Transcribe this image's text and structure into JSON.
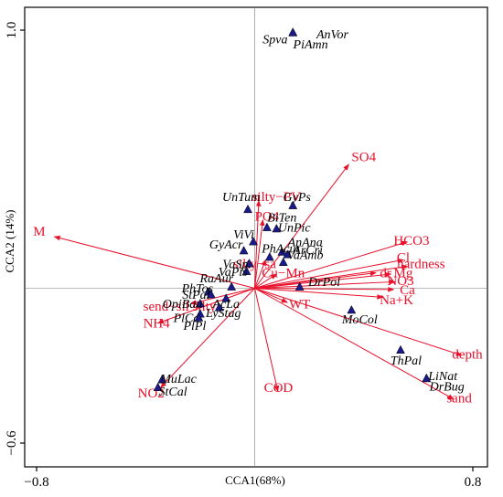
{
  "chart_data": {
    "type": "scatter",
    "title": "",
    "xlabel": "CCA1(68%)",
    "ylabel": "CCA2 (14%)",
    "xlim": [
      -0.8,
      0.8
    ],
    "ylim": [
      -0.6,
      1.0
    ],
    "x_ticks": [
      {
        "v": -0.8,
        "label": "−0.8"
      },
      {
        "v": 0.8,
        "label": "0.8"
      }
    ],
    "y_ticks": [
      {
        "v": 1.0,
        "label": "1.0"
      },
      {
        "v": -0.6,
        "label": "−0.6"
      }
    ],
    "colors": {
      "vector": "#e8102a",
      "point": "#1a1a8c",
      "axis": "#000000"
    },
    "vectors": [
      {
        "name": "M",
        "x": -0.735,
        "y": 0.2,
        "lx": -0.79,
        "ly": 0.215
      },
      {
        "name": "SO4",
        "x": 0.345,
        "y": 0.48,
        "lx": 0.4,
        "ly": 0.505
      },
      {
        "name": "HCO3",
        "x": 0.56,
        "y": 0.18,
        "lx": 0.575,
        "ly": 0.18
      },
      {
        "name": "Cl",
        "x": 0.545,
        "y": 0.11,
        "lx": 0.545,
        "ly": 0.115
      },
      {
        "name": "hardness",
        "x": 0.56,
        "y": 0.085,
        "lx": 0.61,
        "ly": 0.09
      },
      {
        "name": "Mg",
        "x": 0.5,
        "y": 0.055,
        "lx": 0.545,
        "ly": 0.055
      },
      {
        "name": "dr",
        "x": 0.445,
        "y": 0.06,
        "lx": 0.48,
        "ly": 0.055
      },
      {
        "name": "NO3",
        "x": 0.515,
        "y": 0.025,
        "lx": 0.535,
        "ly": 0.025
      },
      {
        "name": "Ca",
        "x": 0.51,
        "y": -0.005,
        "lx": 0.56,
        "ly": -0.01
      },
      {
        "name": "Na+K",
        "x": 0.47,
        "y": -0.035,
        "lx": 0.52,
        "ly": -0.05
      },
      {
        "name": "WT",
        "x": 0.12,
        "y": -0.055,
        "lx": 0.165,
        "ly": -0.065
      },
      {
        "name": "depth",
        "x": 0.76,
        "y": -0.26,
        "lx": 0.78,
        "ly": -0.26
      },
      {
        "name": "sand",
        "x": 0.73,
        "y": -0.43,
        "lx": 0.75,
        "ly": -0.43
      },
      {
        "name": "COD",
        "x": 0.085,
        "y": -0.4,
        "lx": 0.087,
        "ly": -0.39
      },
      {
        "name": "NO2",
        "x": -0.345,
        "y": -0.385,
        "lx": -0.38,
        "ly": -0.41
      },
      {
        "name": "NH4",
        "x": -0.355,
        "y": -0.135,
        "lx": -0.36,
        "ly": -0.14
      },
      {
        "name": "send−sil silty",
        "x": -0.235,
        "y": -0.06,
        "lx": -0.275,
        "ly": -0.075
      },
      {
        "name": "silty−PV",
        "x": 0.015,
        "y": 0.34,
        "lx": 0.08,
        "ly": 0.35
      },
      {
        "name": "PO4",
        "x": 0.03,
        "y": 0.265,
        "lx": 0.045,
        "ly": 0.275
      },
      {
        "name": "silty−sa",
        "x": 0.04,
        "y": 0.11,
        "lx": 0.0,
        "ly": 0.09
      },
      {
        "name": "Cu−Mn",
        "x": 0.08,
        "y": 0.055,
        "lx": 0.105,
        "ly": 0.055
      }
    ],
    "species": [
      {
        "name": "AnVor",
        "x": 0.14,
        "y": 0.99,
        "lx": 0.285,
        "ly": 0.98
      },
      {
        "name": "Spva",
        "x": 0.14,
        "y": 0.99,
        "lx": 0.075,
        "ly": 0.96
      },
      {
        "name": "PiAmn",
        "x": 0.14,
        "y": 0.99,
        "lx": 0.205,
        "ly": 0.94
      },
      {
        "name": "GyPs",
        "x": 0.14,
        "y": 0.32,
        "lx": 0.155,
        "ly": 0.35
      },
      {
        "name": "UnTum",
        "x": -0.025,
        "y": 0.305,
        "lx": -0.05,
        "ly": 0.35
      },
      {
        "name": "BiTen",
        "x": 0.045,
        "y": 0.235,
        "lx": 0.1,
        "ly": 0.27
      },
      {
        "name": "UnPic",
        "x": 0.08,
        "y": 0.23,
        "lx": 0.145,
        "ly": 0.23
      },
      {
        "name": "AnAna",
        "x": 0.1,
        "y": 0.14,
        "lx": 0.185,
        "ly": 0.175
      },
      {
        "name": "ArCri",
        "x": 0.12,
        "y": 0.13,
        "lx": 0.195,
        "ly": 0.145
      },
      {
        "name": "ViVi",
        "x": -0.005,
        "y": 0.18,
        "lx": -0.04,
        "ly": 0.205
      },
      {
        "name": "PhAcut",
        "x": 0.055,
        "y": 0.12,
        "lx": 0.095,
        "ly": 0.15
      },
      {
        "name": "GyAcr",
        "x": -0.04,
        "y": 0.145,
        "lx": -0.105,
        "ly": 0.165
      },
      {
        "name": "VaAmb",
        "x": 0.105,
        "y": 0.1,
        "lx": 0.185,
        "ly": 0.125
      },
      {
        "name": "VaSp.",
        "x": -0.02,
        "y": 0.095,
        "lx": -0.065,
        "ly": 0.09
      },
      {
        "name": "VaPis",
        "x": -0.03,
        "y": 0.065,
        "lx": -0.08,
        "ly": 0.06
      },
      {
        "name": "DrPol",
        "x": 0.165,
        "y": 0.005,
        "lx": 0.255,
        "ly": 0.02
      },
      {
        "name": "RaAur",
        "x": -0.085,
        "y": 0.005,
        "lx": -0.14,
        "ly": 0.035
      },
      {
        "name": "PhTos",
        "x": -0.17,
        "y": -0.015,
        "lx": -0.21,
        "ly": -0.005
      },
      {
        "name": "StPal",
        "x": -0.16,
        "y": -0.025,
        "lx": -0.215,
        "ly": -0.03
      },
      {
        "name": "OpiBau",
        "x": -0.2,
        "y": -0.06,
        "lx": -0.265,
        "ly": -0.065
      },
      {
        "name": "AcLa",
        "x": -0.105,
        "y": -0.04,
        "lx": -0.105,
        "ly": -0.065
      },
      {
        "name": "LyStag",
        "x": -0.13,
        "y": -0.075,
        "lx": -0.115,
        "ly": -0.1
      },
      {
        "name": "PlCo",
        "x": -0.2,
        "y": -0.1,
        "lx": -0.25,
        "ly": -0.12
      },
      {
        "name": "PlPl",
        "x": -0.205,
        "y": -0.115,
        "lx": -0.22,
        "ly": -0.15
      },
      {
        "name": "MoCol",
        "x": 0.355,
        "y": -0.085,
        "lx": 0.385,
        "ly": -0.125
      },
      {
        "name": "ThPal",
        "x": 0.535,
        "y": -0.24,
        "lx": 0.555,
        "ly": -0.285
      },
      {
        "name": "LiNat",
        "x": 0.63,
        "y": -0.35,
        "lx": 0.69,
        "ly": -0.345
      },
      {
        "name": "DrBug",
        "x": 0.63,
        "y": -0.35,
        "lx": 0.705,
        "ly": -0.385
      },
      {
        "name": "MuLac",
        "x": -0.34,
        "y": -0.355,
        "lx": -0.28,
        "ly": -0.355
      },
      {
        "name": "StCal",
        "x": -0.355,
        "y": -0.385,
        "lx": -0.3,
        "ly": -0.405
      }
    ],
    "grid": false,
    "legend": "none"
  }
}
